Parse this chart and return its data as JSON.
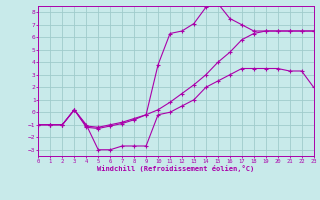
{
  "background_color": "#c8eaea",
  "grid_color": "#a0cccc",
  "line_color": "#aa00aa",
  "xlim": [
    0,
    23
  ],
  "ylim": [
    -3.5,
    8.5
  ],
  "yticks": [
    -3,
    -2,
    -1,
    0,
    1,
    2,
    3,
    4,
    5,
    6,
    7,
    8
  ],
  "xticks": [
    0,
    1,
    2,
    3,
    4,
    5,
    6,
    7,
    8,
    9,
    10,
    11,
    12,
    13,
    14,
    15,
    16,
    17,
    18,
    19,
    20,
    21,
    22,
    23
  ],
  "xlabel": "Windchill (Refroidissement éolien,°C)",
  "series1_x": [
    0,
    1,
    2,
    3,
    4,
    5,
    6,
    7,
    8,
    9,
    10,
    11,
    12,
    13,
    14,
    15,
    16,
    17,
    18,
    19,
    20,
    21,
    22,
    23
  ],
  "series1_y": [
    -1.0,
    -1.0,
    -1.0,
    0.2,
    -1.0,
    -3.0,
    -3.0,
    -2.7,
    -2.7,
    -2.7,
    -0.2,
    0.0,
    0.5,
    1.0,
    2.0,
    2.5,
    3.0,
    3.5,
    3.5,
    3.5,
    3.5,
    3.3,
    3.3,
    2.0
  ],
  "series2_x": [
    0,
    1,
    2,
    3,
    4,
    5,
    6,
    7,
    8,
    9,
    10,
    11,
    12,
    13,
    14,
    15,
    16,
    17,
    18,
    19,
    20,
    21,
    22,
    23
  ],
  "series2_y": [
    -1.0,
    -1.0,
    -1.0,
    0.2,
    -1.2,
    -1.3,
    -1.1,
    -0.9,
    -0.6,
    -0.2,
    3.8,
    6.3,
    6.5,
    7.1,
    8.4,
    8.7,
    7.5,
    7.0,
    6.5,
    6.5,
    6.5,
    6.5,
    6.5,
    6.5
  ],
  "series3_x": [
    0,
    1,
    2,
    3,
    4,
    5,
    6,
    7,
    8,
    9,
    10,
    11,
    12,
    13,
    14,
    15,
    16,
    17,
    18,
    19,
    20,
    21,
    22,
    23
  ],
  "series3_y": [
    -1.0,
    -1.0,
    -1.0,
    0.2,
    -1.1,
    -1.2,
    -1.0,
    -0.8,
    -0.5,
    -0.2,
    0.2,
    0.8,
    1.5,
    2.2,
    3.0,
    4.0,
    4.8,
    5.8,
    6.3,
    6.5,
    6.5,
    6.5,
    6.5,
    6.5
  ]
}
